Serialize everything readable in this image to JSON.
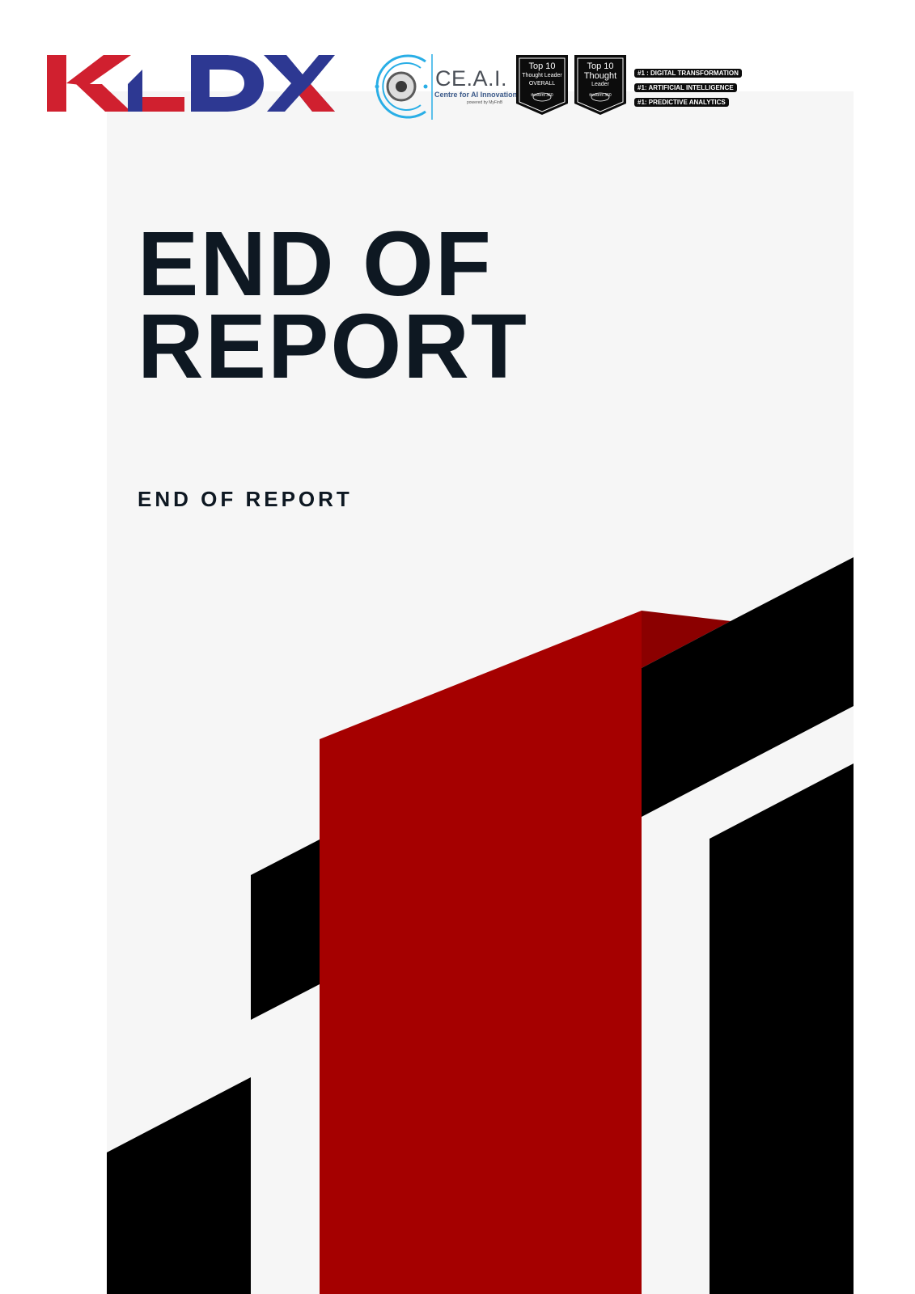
{
  "logos": {
    "kldx": "KLDX",
    "ceai_name": "CE.A.I.",
    "ceai_subtitle": "Centre for AI Innovation",
    "ceai_powered": "powered by MyFinB",
    "badge_1": {
      "line1": "Top 10",
      "line2": "Thought Leader",
      "line3": "OVERALL",
      "brand": "thinkers 360"
    },
    "badge_2": {
      "line1": "Top 10",
      "line2": "Thought",
      "line3": "Leader",
      "brand": "thinkers 360"
    },
    "rankings": [
      "#1 : DIGITAL TRANSFORMATION",
      "#1: ARTIFICIAL INTELLIGENCE",
      "#1: PREDICTIVE ANALYTICS"
    ]
  },
  "title": {
    "line1": "END OF",
    "line2": "REPORT"
  },
  "subtitle": "END OF REPORT",
  "colors": {
    "accent_red": "#a50000",
    "dark": "#0e1822",
    "black": "#000000",
    "kldx_red": "#d0202f",
    "kldx_blue": "#2d3892",
    "ceai_blue": "#29aee6"
  }
}
